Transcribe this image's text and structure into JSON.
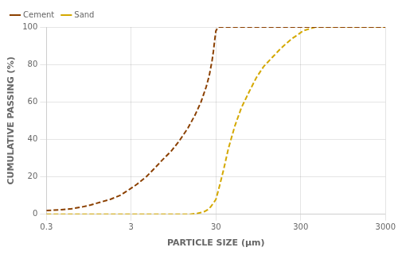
{
  "chart_data": {
    "type": "line",
    "xlabel": "PARTICLE SIZE (μm)",
    "ylabel": "CUMULATIVE PASSING (%)",
    "log": "x",
    "xlim": [
      0.3,
      3000
    ],
    "xticks": [
      0.3,
      3,
      30,
      300,
      3000
    ],
    "ylim": [
      0,
      100
    ],
    "yticks": [
      0,
      20,
      40,
      60,
      80,
      100
    ],
    "grid": true,
    "legend": "upper left",
    "series": [
      {
        "name": "Cement",
        "color": "#8B4000",
        "line_style": "dashed",
        "x": [
          0.3,
          0.45,
          0.6,
          0.8,
          1.0,
          1.3,
          1.7,
          2.2,
          2.8,
          3.5,
          4.5,
          5.5,
          7,
          9,
          11,
          14,
          17,
          20,
          23,
          25,
          27,
          28,
          29,
          30,
          32,
          35,
          40,
          50,
          3000
        ],
        "values": [
          2,
          2.5,
          3,
          4,
          5,
          6.5,
          8,
          10,
          13,
          16,
          20,
          24,
          29,
          34,
          39,
          46,
          53,
          60,
          68,
          74,
          82,
          87,
          93,
          98,
          100,
          100,
          100,
          100,
          100
        ]
      },
      {
        "name": "Sand",
        "color": "#D4A800",
        "line_style": "dashed",
        "x": [
          0.3,
          10,
          15,
          18,
          20,
          22,
          24,
          26,
          28,
          30,
          33,
          37,
          42,
          50,
          60,
          75,
          90,
          110,
          140,
          170,
          200,
          240,
          280,
          320,
          380,
          450,
          600,
          1000,
          3000
        ],
        "values": [
          0,
          0,
          0,
          0.5,
          1,
          1.5,
          2.5,
          4,
          6,
          8,
          15,
          24,
          35,
          47,
          57,
          66,
          73,
          79,
          84,
          88,
          91,
          94,
          96,
          98,
          99,
          100,
          100,
          100,
          100
        ]
      }
    ]
  }
}
